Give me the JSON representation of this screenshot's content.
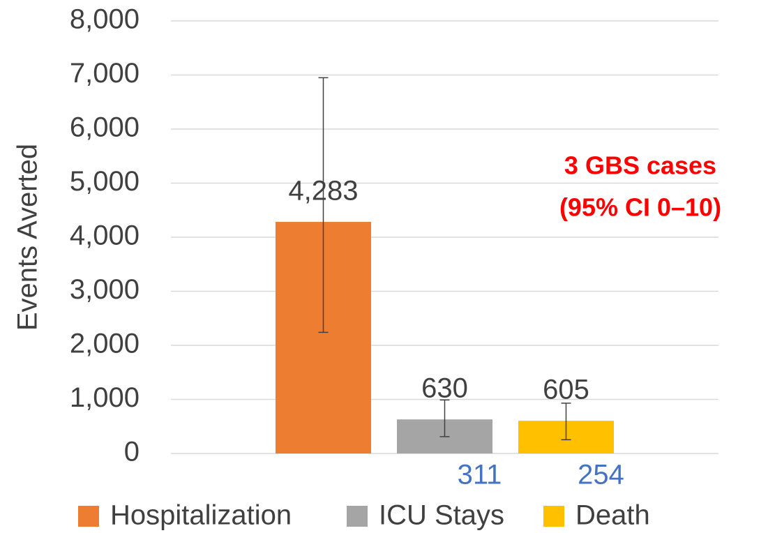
{
  "chart_data": {
    "type": "bar",
    "y_label": "Events Averted",
    "categories": [
      null
    ],
    "series": [
      {
        "name": "Hospitalization",
        "color": "#ed7d31",
        "values": [
          4283
        ],
        "value_labels": [
          "4,283"
        ],
        "error_low": [
          2240
        ],
        "error_high": [
          6950
        ],
        "show_low_label": false
      },
      {
        "name": "ICU Stays",
        "color": "#a5a5a5",
        "values": [
          630
        ],
        "error_low": [
          311
        ],
        "error_high": [
          990
        ],
        "show_low_label": true
      },
      {
        "name": "Death",
        "color": "#ffc000",
        "values": [
          605
        ],
        "error_low": [
          254
        ],
        "error_high": [
          930
        ],
        "show_low_label": true
      }
    ],
    "annotation": [
      "3 GBS cases",
      "(95% CI 0–10)"
    ],
    "ylim": [
      0,
      8000
    ],
    "yticks": [
      {
        "value": 0,
        "label": "0"
      },
      {
        "value": 1000,
        "label": "1,000"
      },
      {
        "value": 2000,
        "label": "2,000"
      },
      {
        "value": 3000,
        "label": "3,000"
      },
      {
        "value": 4000,
        "label": "4,000"
      },
      {
        "value": 5000,
        "label": "5,000"
      },
      {
        "value": 6000,
        "label": "6,000"
      },
      {
        "value": 7000,
        "label": "7,000"
      },
      {
        "value": 8000,
        "label": "8,000"
      }
    ],
    "grid": true,
    "legend": "bottom"
  }
}
